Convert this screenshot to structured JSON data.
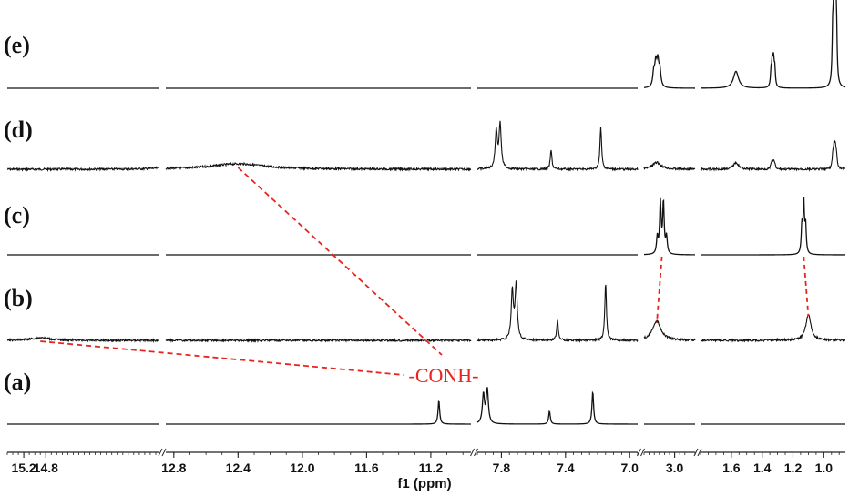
{
  "chart_data": {
    "type": "line",
    "xlabel": "f1 (ppm)",
    "x_axis_reversed": true,
    "grid": false,
    "axis_segments": [
      {
        "range": [
          15.5,
          12.75
        ],
        "ticks": [
          "15.2",
          "14.8"
        ]
      },
      {
        "range": [
          12.85,
          10.95
        ],
        "ticks": [
          "12.8",
          "12.4",
          "12.0",
          "11.6",
          "11.2"
        ]
      },
      {
        "range": [
          7.95,
          6.95
        ],
        "ticks": [
          "7.8",
          "7.4",
          "7.0"
        ]
      },
      {
        "range": [
          3.12,
          2.92
        ],
        "ticks": [
          "3.0"
        ]
      },
      {
        "range": [
          1.8,
          0.86
        ],
        "ticks": [
          "1.6",
          "1.4",
          "1.2",
          "1.0"
        ]
      }
    ],
    "series": [
      {
        "label": "(e)",
        "peaks": [
          {
            "ppm": 3.07,
            "intensity": 0.28,
            "shape": "multiplet"
          },
          {
            "ppm": 1.57,
            "intensity": 0.2,
            "shape": "broad"
          },
          {
            "ppm": 1.33,
            "intensity": 0.3,
            "shape": "multiplet"
          },
          {
            "ppm": 0.93,
            "intensity": 1.0,
            "shape": "multiplet"
          }
        ]
      },
      {
        "label": "(d)",
        "peaks": [
          {
            "ppm": 12.4,
            "intensity": 0.08,
            "shape": "very broad"
          },
          {
            "ppm": 7.82,
            "intensity": 0.65,
            "shape": "doublet"
          },
          {
            "ppm": 7.49,
            "intensity": 0.28,
            "shape": "singlet"
          },
          {
            "ppm": 7.18,
            "intensity": 0.62,
            "shape": "singlet"
          },
          {
            "ppm": 3.07,
            "intensity": 0.1,
            "shape": "broad"
          },
          {
            "ppm": 1.57,
            "intensity": 0.1,
            "shape": "broad"
          },
          {
            "ppm": 1.33,
            "intensity": 0.1,
            "shape": "multiplet"
          },
          {
            "ppm": 0.93,
            "intensity": 0.3,
            "shape": "multiplet"
          }
        ]
      },
      {
        "label": "(c)",
        "peaks": [
          {
            "ppm": 3.05,
            "intensity": 0.75,
            "shape": "quartet"
          },
          {
            "ppm": 1.13,
            "intensity": 0.75,
            "shape": "triplet"
          }
        ]
      },
      {
        "label": "(b)",
        "peaks": [
          {
            "ppm": 14.9,
            "intensity": 0.04,
            "shape": "very broad"
          },
          {
            "ppm": 7.72,
            "intensity": 0.82,
            "shape": "doublet"
          },
          {
            "ppm": 7.45,
            "intensity": 0.3,
            "shape": "singlet"
          },
          {
            "ppm": 7.15,
            "intensity": 0.85,
            "shape": "singlet"
          },
          {
            "ppm": 3.07,
            "intensity": 0.28,
            "shape": "broad"
          },
          {
            "ppm": 1.1,
            "intensity": 0.38,
            "shape": "broad"
          }
        ]
      },
      {
        "label": "(a)",
        "peaks": [
          {
            "ppm": 11.15,
            "intensity": 0.4,
            "shape": "singlet"
          },
          {
            "ppm": 7.9,
            "intensity": 0.58,
            "shape": "doublet"
          },
          {
            "ppm": 7.5,
            "intensity": 0.22,
            "shape": "singlet"
          },
          {
            "ppm": 7.23,
            "intensity": 0.55,
            "shape": "singlet"
          }
        ]
      }
    ],
    "annotations": [
      {
        "text": "-CONH-",
        "color": "#e8241e",
        "connects": [
          {
            "series": "(a)",
            "ppm": 11.15
          },
          {
            "series": "(b)",
            "ppm": 14.9
          },
          {
            "series": "(d)",
            "ppm": 12.4
          }
        ]
      }
    ],
    "shift_lines": [
      {
        "from": {
          "series": "(c)",
          "ppm": 3.05
        },
        "to": {
          "series": "(b)",
          "ppm": 3.07
        }
      },
      {
        "from": {
          "series": "(c)",
          "ppm": 1.13
        },
        "to": {
          "series": "(b)",
          "ppm": 1.1
        }
      }
    ],
    "colors": {
      "trace": "#111111",
      "annotation": "#e8241e",
      "break_line": "#c8c8c8"
    }
  }
}
